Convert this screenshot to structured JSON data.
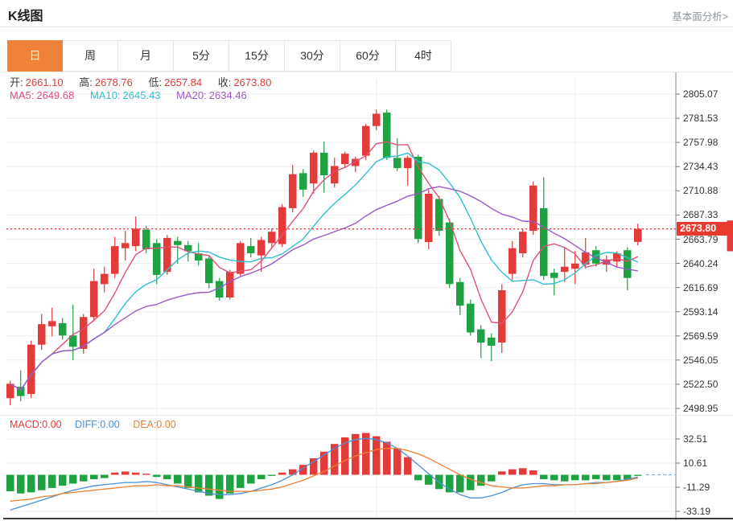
{
  "page": {
    "title": "K线图",
    "link": "基本面分析>"
  },
  "tabs": {
    "items": [
      "日",
      "周",
      "月",
      "5分",
      "15分",
      "30分",
      "60分",
      "4时"
    ],
    "active": "日"
  },
  "main_info": {
    "open_label": "开:",
    "open_value": "2661.10",
    "high_label": "高:",
    "high_value": "2678.76",
    "low_label": "低:",
    "low_value": "2657.84",
    "close_label": "收:",
    "close_value": "2673.80",
    "ma5_label": "MA5:",
    "ma5_value": "2649.68",
    "ma10_label": "MA10:",
    "ma10_value": "2645.43",
    "ma20_label": "MA20:",
    "ma20_value": "2634.46"
  },
  "macd_info": {
    "macd_label": "MACD:",
    "macd_value": "0.00",
    "diff_label": "DIFF:",
    "diff_value": "0.00",
    "dea_label": "DEA:",
    "dea_value": "0.00"
  },
  "colors": {
    "up": "#e23b3a",
    "down": "#1fa342",
    "ma5": "#e0507a",
    "ma10": "#2fc0d2",
    "ma20": "#9b59c8",
    "diff": "#4a90d8",
    "dea": "#ef8032",
    "accent": "#ef8239",
    "tag": "#e8392e",
    "grid": "#ededed",
    "axis": "#8a8a8a",
    "tick": "#777777",
    "dotted": "#f03b3b",
    "zero_ext": "#74b9e6"
  },
  "chart_data": [
    {
      "type": "candlestick",
      "title": "K线图 日K (daily candles with MA5/MA10/MA20 overlays)",
      "y_ticks": [
        "2805.07",
        "2781.53",
        "2757.98",
        "2734.43",
        "2710.88",
        "2687.33",
        "2663.79",
        "2640.24",
        "2616.69",
        "2593.14",
        "2569.59",
        "2546.05",
        "2522.50",
        "2498.95"
      ],
      "ylim": [
        2498.95,
        2805.07
      ],
      "grid": true,
      "legend_position": "top-left-inline",
      "current_price": 2673.8,
      "current_price_label": "2673.80",
      "ma_periods": [
        5,
        10,
        20
      ],
      "vline_indices": [
        14,
        35,
        54
      ],
      "clipped_next_candle": {
        "price_top": 2682,
        "price_bottom": 2652
      },
      "candles": [
        [
          2509,
          2526,
          2502,
          2523
        ],
        [
          2520,
          2536,
          2506,
          2511
        ],
        [
          2513,
          2565,
          2509,
          2561
        ],
        [
          2561,
          2591,
          2556,
          2581
        ],
        [
          2579,
          2597,
          2569,
          2584
        ],
        [
          2582,
          2587,
          2566,
          2570
        ],
        [
          2570,
          2600,
          2546,
          2559
        ],
        [
          2557,
          2591,
          2552,
          2588
        ],
        [
          2588,
          2635,
          2584,
          2623
        ],
        [
          2620,
          2637,
          2612,
          2630
        ],
        [
          2630,
          2666,
          2626,
          2657
        ],
        [
          2655,
          2672,
          2643,
          2660
        ],
        [
          2657,
          2686,
          2652,
          2674
        ],
        [
          2673,
          2677,
          2650,
          2654
        ],
        [
          2660,
          2664,
          2620,
          2629
        ],
        [
          2632,
          2668,
          2629,
          2665
        ],
        [
          2662,
          2666,
          2640,
          2658
        ],
        [
          2658,
          2662,
          2642,
          2652
        ],
        [
          2650,
          2660,
          2638,
          2643
        ],
        [
          2645,
          2648,
          2616,
          2621
        ],
        [
          2623,
          2626,
          2604,
          2607
        ],
        [
          2607,
          2634,
          2605,
          2632
        ],
        [
          2630,
          2662,
          2628,
          2660
        ],
        [
          2657,
          2665,
          2646,
          2650
        ],
        [
          2648,
          2666,
          2632,
          2663
        ],
        [
          2660,
          2674,
          2656,
          2671
        ],
        [
          2659,
          2698,
          2656,
          2695
        ],
        [
          2694,
          2736,
          2690,
          2727
        ],
        [
          2728,
          2732,
          2705,
          2712
        ],
        [
          2718,
          2750,
          2708,
          2748
        ],
        [
          2748,
          2759,
          2709,
          2726
        ],
        [
          2718,
          2743,
          2714,
          2735
        ],
        [
          2737,
          2749,
          2733,
          2747
        ],
        [
          2735,
          2744,
          2729,
          2742
        ],
        [
          2745,
          2776,
          2741,
          2774
        ],
        [
          2774,
          2790,
          2770,
          2786
        ],
        [
          2787,
          2790,
          2741,
          2743
        ],
        [
          2743,
          2762,
          2730,
          2733
        ],
        [
          2733,
          2745,
          2716,
          2743
        ],
        [
          2744,
          2746,
          2660,
          2664
        ],
        [
          2661,
          2712,
          2654,
          2708
        ],
        [
          2703,
          2706,
          2667,
          2672
        ],
        [
          2680,
          2684,
          2616,
          2620
        ],
        [
          2622,
          2626,
          2590,
          2599
        ],
        [
          2601,
          2605,
          2570,
          2573
        ],
        [
          2576,
          2580,
          2548,
          2563
        ],
        [
          2568,
          2572,
          2545,
          2560
        ],
        [
          2563,
          2620,
          2553,
          2614
        ],
        [
          2630,
          2662,
          2624,
          2655
        ],
        [
          2650,
          2674,
          2646,
          2671
        ],
        [
          2672,
          2720,
          2668,
          2716
        ],
        [
          2694,
          2724,
          2624,
          2628
        ],
        [
          2631,
          2635,
          2609,
          2626
        ],
        [
          2632,
          2656,
          2622,
          2637
        ],
        [
          2635,
          2652,
          2620,
          2640
        ],
        [
          2639,
          2665,
          2635,
          2651
        ],
        [
          2653,
          2657,
          2637,
          2640
        ],
        [
          2639,
          2648,
          2632,
          2644
        ],
        [
          2642,
          2652,
          2636,
          2650
        ],
        [
          2653,
          2656,
          2614,
          2626
        ],
        [
          2661.1,
          2678.76,
          2657.84,
          2673.8
        ]
      ]
    },
    {
      "type": "bar",
      "title": "MACD (histogram with DIFF / DEA lines)",
      "y_ticks": [
        "32.51",
        "10.61",
        "-11.29",
        "-33.19"
      ],
      "ylim": [
        -33.19,
        32.51
      ],
      "grid": true,
      "vline_indices": [
        14,
        35,
        54
      ],
      "hist": [
        -15,
        -17,
        -16,
        -14,
        -12,
        -10,
        -8,
        -6,
        -4,
        -3,
        2,
        3,
        2,
        1,
        -2,
        -4,
        -8,
        -12,
        -16,
        -19,
        -22,
        -17,
        -12,
        -8,
        -4,
        -1,
        2,
        5,
        9,
        15,
        21,
        28,
        34,
        37,
        38,
        35,
        30,
        24,
        16,
        -5,
        -9,
        -13,
        -16,
        -16,
        -14,
        -10,
        -6,
        3,
        5,
        6,
        4,
        -4,
        -5,
        -6,
        -5,
        -5,
        -4,
        -5,
        -5,
        -4,
        -1
      ],
      "diff": [
        -32,
        -29,
        -26,
        -23,
        -20,
        -17,
        -14,
        -12,
        -10,
        -9,
        -8,
        -7,
        -7,
        -6,
        -7,
        -9,
        -11,
        -13,
        -15,
        -17,
        -18,
        -18,
        -17,
        -15,
        -12,
        -9,
        -5,
        0,
        6,
        12,
        18,
        24,
        29,
        32,
        33,
        32,
        29,
        24,
        17,
        9,
        1,
        -7,
        -13,
        -18,
        -21,
        -21,
        -19,
        -16,
        -12,
        -9,
        -8,
        -8,
        -9,
        -9,
        -9,
        -8,
        -7,
        -7,
        -6,
        -4,
        -2
      ],
      "dea": [
        -24,
        -23,
        -22,
        -20,
        -19,
        -17,
        -16,
        -15,
        -14,
        -13,
        -12,
        -11,
        -10,
        -10,
        -9,
        -10,
        -10,
        -11,
        -12,
        -13,
        -14,
        -15,
        -15,
        -15,
        -14,
        -13,
        -11,
        -8,
        -5,
        -1,
        3,
        8,
        13,
        17,
        20,
        23,
        24,
        24,
        22,
        19,
        15,
        10,
        5,
        0,
        -4,
        -7,
        -10,
        -11,
        -12,
        -12,
        -11,
        -10,
        -10,
        -9,
        -9,
        -8,
        -8,
        -7,
        -6,
        -5,
        -3
      ]
    }
  ]
}
